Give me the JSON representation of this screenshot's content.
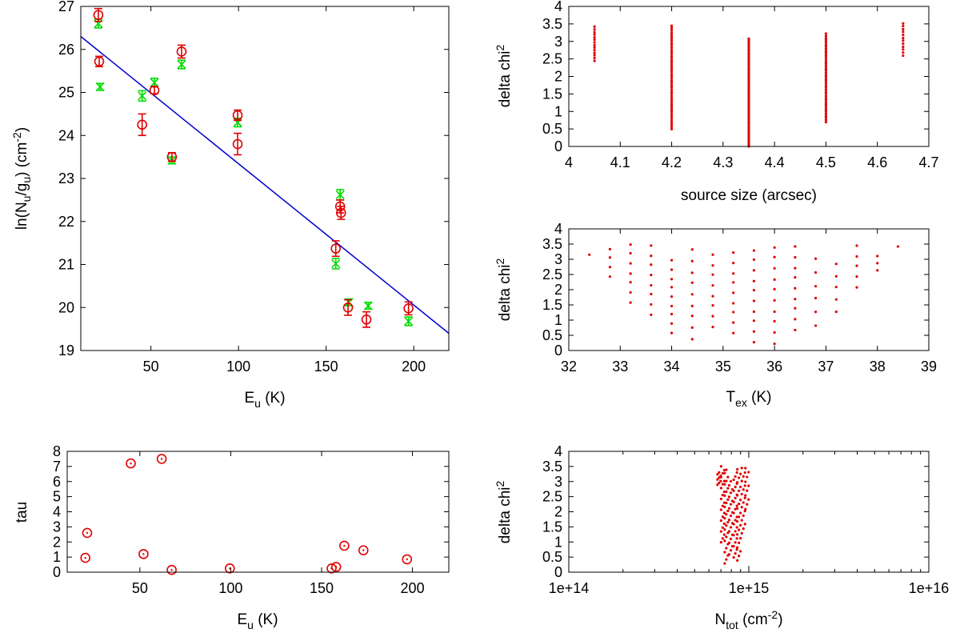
{
  "colors": {
    "obs": "#e00000",
    "model": "#00dd00",
    "fit": "#0000cc",
    "axis": "#000000"
  },
  "chart_data": [
    {
      "id": "rotation",
      "type": "scatter",
      "xlabel": {
        "main": "E",
        "sub": "u",
        "rest": " (K)"
      },
      "ylabel": {
        "p1": "ln(N",
        "s1": "u",
        "p2": "/g",
        "s2": "u",
        "p3": ") (cm",
        "sup": "-2",
        "p4": ")"
      },
      "xlim": [
        10,
        220
      ],
      "ylim": [
        19,
        27
      ],
      "xticks": [
        50,
        100,
        150,
        200
      ],
      "yticks": [
        19,
        20,
        21,
        22,
        23,
        24,
        25,
        26,
        27
      ],
      "fit_line": {
        "x": [
          10,
          220
        ],
        "y": [
          26.3,
          19.4
        ]
      },
      "series": [
        {
          "name": "observed",
          "marker": "circle",
          "points": [
            [
              20,
              26.8,
              0.15
            ],
            [
              20.5,
              25.72,
              0.12
            ],
            [
              45,
              24.25,
              0.25
            ],
            [
              52,
              25.05,
              0.08
            ],
            [
              62,
              23.5,
              0.1
            ],
            [
              67.5,
              25.95,
              0.15
            ],
            [
              99.5,
              24.47,
              0.12
            ],
            [
              99.5,
              23.8,
              0.25
            ],
            [
              155.5,
              21.37,
              0.18
            ],
            [
              158,
              22.35,
              0.15
            ],
            [
              158.5,
              22.2,
              0.15
            ],
            [
              162.5,
              20.0,
              0.18
            ],
            [
              173,
              19.72,
              0.18
            ],
            [
              197,
              19.98,
              0.15
            ]
          ]
        },
        {
          "name": "model",
          "marker": "x",
          "points": [
            [
              20,
              26.6,
              0.1
            ],
            [
              21,
              25.13,
              0.08
            ],
            [
              45,
              24.92,
              0.12
            ],
            [
              52,
              25.23,
              0.1
            ],
            [
              62,
              23.42,
              0.08
            ],
            [
              67.5,
              25.65,
              0.1
            ],
            [
              99.5,
              24.3,
              0.1
            ],
            [
              155.5,
              21.02,
              0.12
            ],
            [
              158,
              22.62,
              0.12
            ],
            [
              163,
              20.12,
              0.08
            ],
            [
              174,
              20.04,
              0.08
            ],
            [
              197,
              19.68,
              0.1
            ]
          ]
        }
      ]
    },
    {
      "id": "chi-size",
      "type": "scatter",
      "xlabel": {
        "main": "source size (arcsec)"
      },
      "ylabel": {
        "main": "delta chi",
        "sup": "2"
      },
      "xlim": [
        4,
        4.7
      ],
      "ylim": [
        0,
        4
      ],
      "xticks": [
        4,
        4.1,
        4.2,
        4.3,
        4.4,
        4.5,
        4.6,
        4.7
      ],
      "yticks": [
        0,
        0.5,
        1,
        1.5,
        2,
        2.5,
        3,
        3.5,
        4
      ],
      "columns": [
        [
          4.05,
          2.45,
          3.42,
          14
        ],
        [
          4.2,
          0.5,
          3.45,
          48
        ],
        [
          4.35,
          0.0,
          3.08,
          62
        ],
        [
          4.5,
          0.7,
          3.22,
          42
        ],
        [
          4.65,
          2.6,
          3.52,
          12
        ]
      ]
    },
    {
      "id": "chi-tex",
      "type": "scatter",
      "xlabel": {
        "main": "T",
        "sub": "ex",
        "rest": " (K)"
      },
      "ylabel": {
        "main": "delta chi",
        "sup": "2"
      },
      "xlim": [
        32,
        39
      ],
      "ylim": [
        0,
        4
      ],
      "xticks": [
        32,
        33,
        34,
        35,
        36,
        37,
        38,
        39
      ],
      "yticks": [
        0,
        0.5,
        1,
        1.5,
        2,
        2.5,
        3,
        3.5,
        4
      ],
      "columns": [
        [
          32.4,
          3.15,
          3.15,
          1
        ],
        [
          32.8,
          2.45,
          3.35,
          4
        ],
        [
          33.2,
          1.6,
          3.5,
          7
        ],
        [
          33.6,
          1.2,
          3.45,
          8
        ],
        [
          34.0,
          0.6,
          2.95,
          9
        ],
        [
          34.4,
          0.4,
          3.3,
          9
        ],
        [
          34.8,
          0.8,
          3.15,
          8
        ],
        [
          35.2,
          0.6,
          3.2,
          9
        ],
        [
          35.6,
          0.3,
          3.3,
          10
        ],
        [
          36.0,
          0.25,
          3.4,
          10
        ],
        [
          36.4,
          0.7,
          3.4,
          9
        ],
        [
          36.8,
          0.85,
          3.0,
          6
        ],
        [
          37.2,
          1.3,
          2.85,
          5
        ],
        [
          37.6,
          2.1,
          3.45,
          5
        ],
        [
          38.0,
          2.65,
          3.1,
          3
        ],
        [
          38.4,
          3.42,
          3.42,
          1
        ]
      ]
    },
    {
      "id": "tau",
      "type": "scatter",
      "xlabel": {
        "main": "E",
        "sub": "u",
        "rest": " (K)"
      },
      "ylabel": {
        "main": "tau"
      },
      "xlim": [
        10,
        220
      ],
      "ylim": [
        0,
        8
      ],
      "xticks": [
        50,
        100,
        150,
        200
      ],
      "yticks": [
        0,
        1,
        2,
        3,
        4,
        5,
        6,
        7,
        8
      ],
      "points": [
        [
          20,
          0.95
        ],
        [
          21,
          2.6
        ],
        [
          45,
          7.2
        ],
        [
          52,
          1.2
        ],
        [
          62,
          7.5
        ],
        [
          67.5,
          0.15
        ],
        [
          99.5,
          0.25
        ],
        [
          155.5,
          0.25
        ],
        [
          158,
          0.35
        ],
        [
          162.5,
          1.75
        ],
        [
          173,
          1.45
        ],
        [
          197,
          0.85
        ]
      ]
    },
    {
      "id": "chi-ntot",
      "type": "scatter",
      "xlabel": {
        "main": "N",
        "sub": "tot",
        "rest": " (cm",
        "sup": "-2",
        "rest2": ")"
      },
      "ylabel": {
        "main": "delta chi",
        "sup": "2"
      },
      "xscale": "log",
      "xlim_log10": [
        14,
        16
      ],
      "ylim": [
        0,
        4
      ],
      "xticks": [
        "1e+14",
        "1e+15",
        "1e+16"
      ],
      "yticks": [
        0,
        0.5,
        1,
        1.5,
        2,
        2.5,
        3,
        3.5,
        4
      ],
      "columns_log10": [
        [
          14.835,
          2.9,
          3.3,
          8
        ],
        [
          14.855,
          1.0,
          3.5,
          22
        ],
        [
          14.875,
          0.3,
          3.4,
          26
        ],
        [
          14.9,
          0.6,
          3.0,
          20
        ],
        [
          14.925,
          0.5,
          3.3,
          24
        ],
        [
          14.945,
          0.4,
          3.4,
          22
        ],
        [
          14.97,
          1.3,
          3.45,
          16
        ],
        [
          14.99,
          2.1,
          3.45,
          10
        ]
      ]
    }
  ]
}
